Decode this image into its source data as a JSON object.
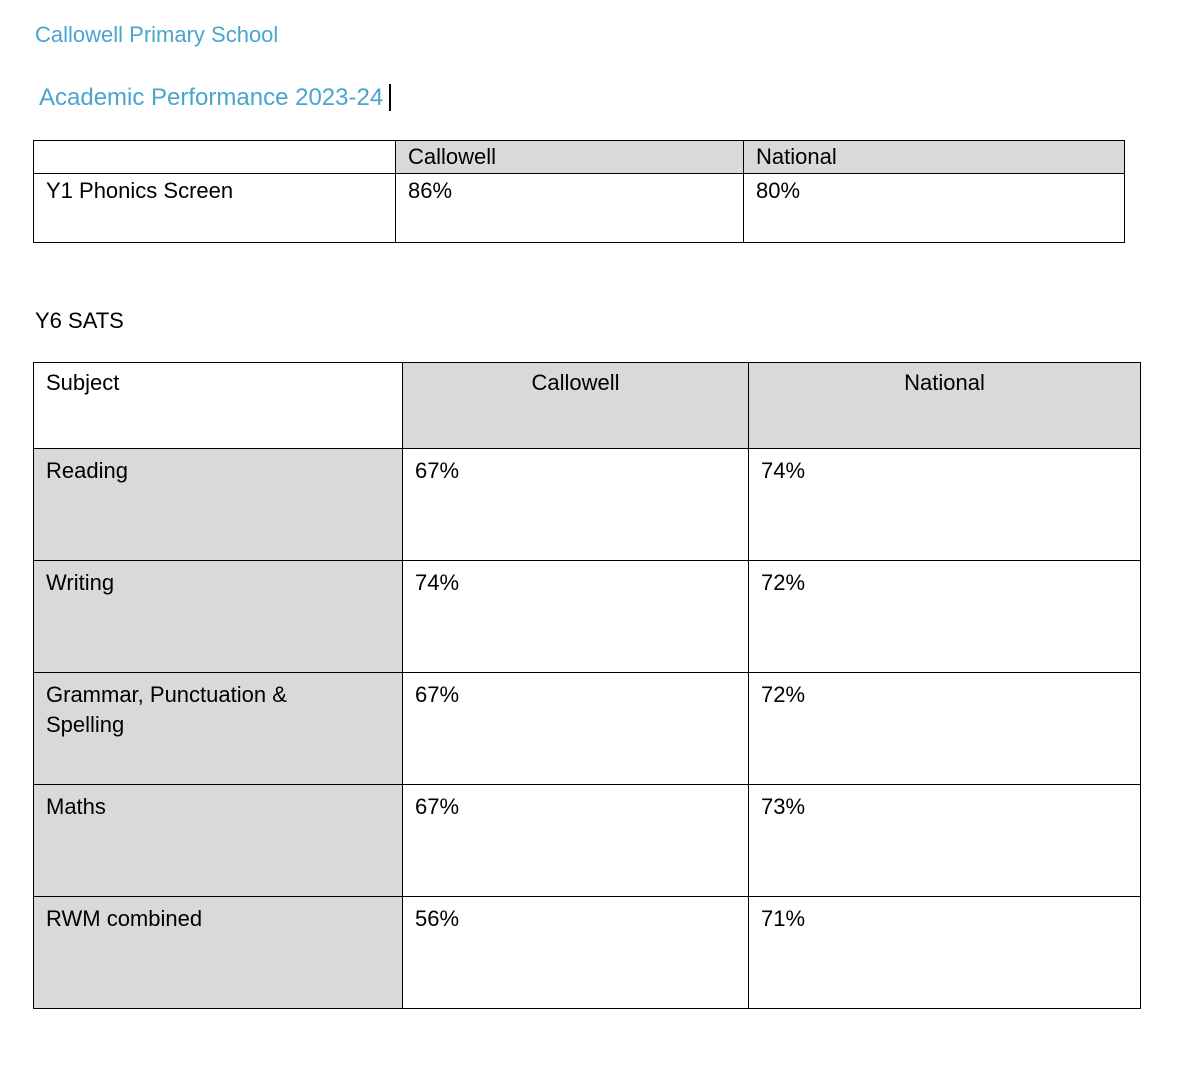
{
  "document": {
    "school_heading": "Callowell Primary School",
    "report_heading": "Academic Performance 2023-24",
    "sats_section_heading": "Y6 SATS"
  },
  "colors": {
    "heading_blue": "#4aa5ce",
    "table_header_shading": "#d9d9d9",
    "table_border": "#000000"
  },
  "phonics_table": {
    "header": {
      "col1": "",
      "col2": "Callowell",
      "col3": "National"
    },
    "rows": [
      {
        "label": "Y1 Phonics Screen",
        "callowell": "86%",
        "national": "80%"
      }
    ]
  },
  "sats_table": {
    "header": {
      "col1": "Subject",
      "col2": "Callowell",
      "col3": "National"
    },
    "rows": [
      {
        "subject": "Reading",
        "callowell": "67%",
        "national": "74%"
      },
      {
        "subject": "Writing",
        "callowell": "74%",
        "national": "72%"
      },
      {
        "subject": "Grammar, Punctuation & Spelling",
        "callowell": "67%",
        "national": "72%"
      },
      {
        "subject": "Maths",
        "callowell": "67%",
        "national": "73%"
      },
      {
        "subject": "RWM combined",
        "callowell": "56%",
        "national": "71%"
      }
    ]
  }
}
